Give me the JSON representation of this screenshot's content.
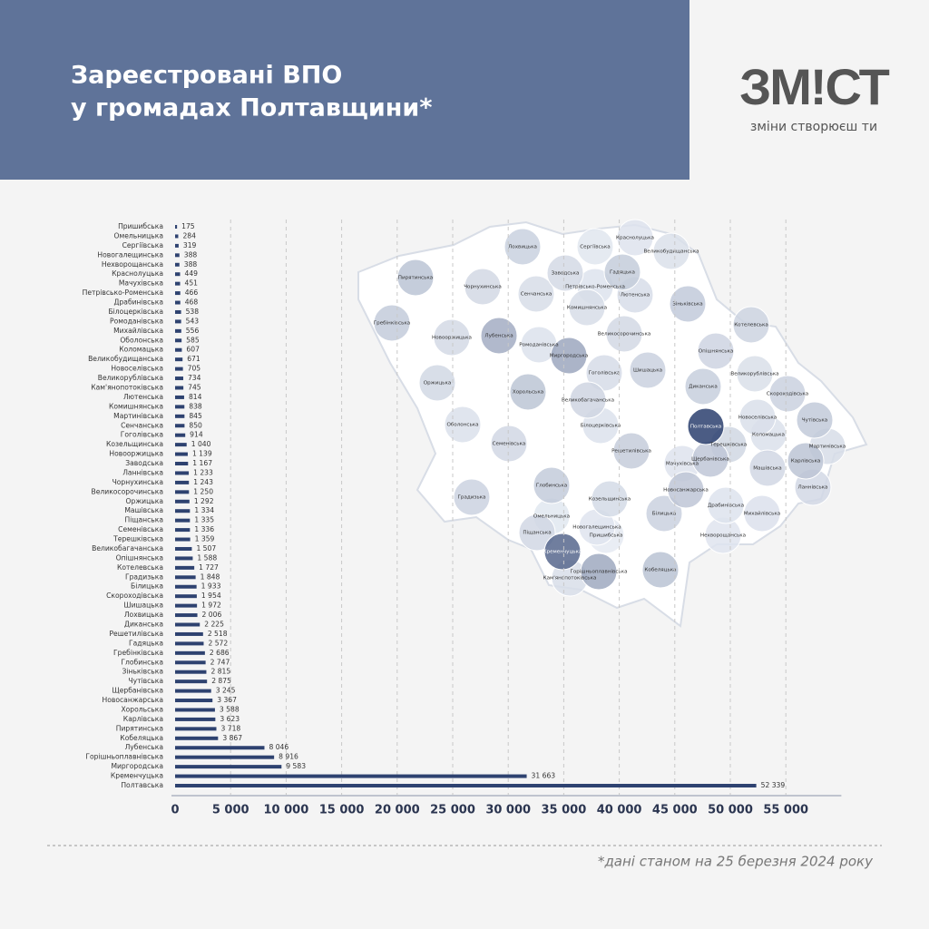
{
  "brand": {
    "logo": "ЗМ!СТ",
    "tagline": "зміни створюєш ти"
  },
  "footnote": "*дані станом на 25 березня 2024 року",
  "chart_data": {
    "type": "barh",
    "title": "Зареєстровані ВПО",
    "subtitle": "у громадах Полтавщини*",
    "color": "#2e4270",
    "categories": [
      "Пришибська",
      "Омельницька",
      "Сергіївська",
      "Новогалещинська",
      "Нехворощанська",
      "Краснолуцька",
      "Мачухівська",
      "Петрівсько-Роменська",
      "Драбинівська",
      "Білоцерківська",
      "Ромоданівська",
      "Михайлівська",
      "Оболонська",
      "Коломацька",
      "Великобудищанська",
      "Новоселівська",
      "Великорублівська",
      "Кам'янопотоківська",
      "Лютенська",
      "Комишнянська",
      "Мартинівська",
      "Сенчанська",
      "Гоголівська",
      "Козельщинська",
      "Новооржицька",
      "Заводська",
      "Ланнівська",
      "Чорнухинська",
      "Великосорочинська",
      "Оржицька",
      "Машівська",
      "Піщанська",
      "Семенівська",
      "Терешківська",
      "Великобагачанська",
      "Опішнянська",
      "Котелевська",
      "Градизька",
      "Білицька",
      "Скороходівська",
      "Шишацька",
      "Лохвицька",
      "Диканська",
      "Решетилівська",
      "Гадяцька",
      "Гребінківська",
      "Глобинська",
      "Зіньківська",
      "Чутівська",
      "Щербанівська",
      "Новосанжарська",
      "Хорольська",
      "Карлівська",
      "Пирятинська",
      "Кобеляцька",
      "Лубенська",
      "Горішньоплавнівська",
      "Миргородська",
      "Кременчуцька",
      "Полтавська"
    ],
    "values": [
      175,
      284,
      319,
      388,
      388,
      449,
      451,
      466,
      468,
      538,
      543,
      556,
      585,
      607,
      671,
      705,
      734,
      745,
      814,
      838,
      845,
      850,
      914,
      1040,
      1139,
      1167,
      1233,
      1243,
      1250,
      1292,
      1334,
      1335,
      1336,
      1359,
      1507,
      1588,
      1727,
      1848,
      1933,
      1954,
      1972,
      2006,
      2225,
      2518,
      2572,
      2686,
      2747,
      2815,
      2875,
      3245,
      3367,
      3588,
      3623,
      3718,
      3867,
      8046,
      8916,
      9583,
      31663,
      52339
    ],
    "value_labels": [
      "175",
      "284",
      "319",
      "388",
      "388",
      "449",
      "451",
      "466",
      "468",
      "538",
      "543",
      "556",
      "585",
      "607",
      "671",
      "705",
      "734",
      "745",
      "814",
      "838",
      "845",
      "850",
      "914",
      "1 040",
      "1 139",
      "1 167",
      "1 233",
      "1 243",
      "1 250",
      "1 292",
      "1 334",
      "1 335",
      "1 336",
      "1 359",
      "1 507",
      "1 588",
      "1 727",
      "1 848",
      "1 933",
      "1 954",
      "1 972",
      "2 006",
      "2 225",
      "2 518",
      "2 572",
      "2 686",
      "2 747",
      "2 815",
      "2 875",
      "3 245",
      "3 367",
      "3 588",
      "3 623",
      "3 718",
      "3 867",
      "8 046",
      "8 916",
      "9 583",
      "31 663",
      "52 339"
    ],
    "xlim": [
      0,
      60000
    ],
    "xticks": [
      0,
      {
        "value": 5000,
        "label": "5 000"
      },
      {
        "value": 10000,
        "label": "10 000"
      },
      {
        "value": 15000,
        "label": "15 000"
      },
      {
        "value": 20000,
        "label": "20 000"
      },
      {
        "value": 25000,
        "label": "25 000"
      },
      {
        "value": 30000,
        "label": "30 000"
      },
      {
        "value": 35000,
        "label": "35 000"
      },
      {
        "value": 40000,
        "label": "40 000"
      },
      {
        "value": 45000,
        "label": "45 000"
      },
      {
        "value": 50000,
        "label": "50 000"
      },
      {
        "value": 55000,
        "label": "55 000"
      }
    ],
    "grid": true
  }
}
